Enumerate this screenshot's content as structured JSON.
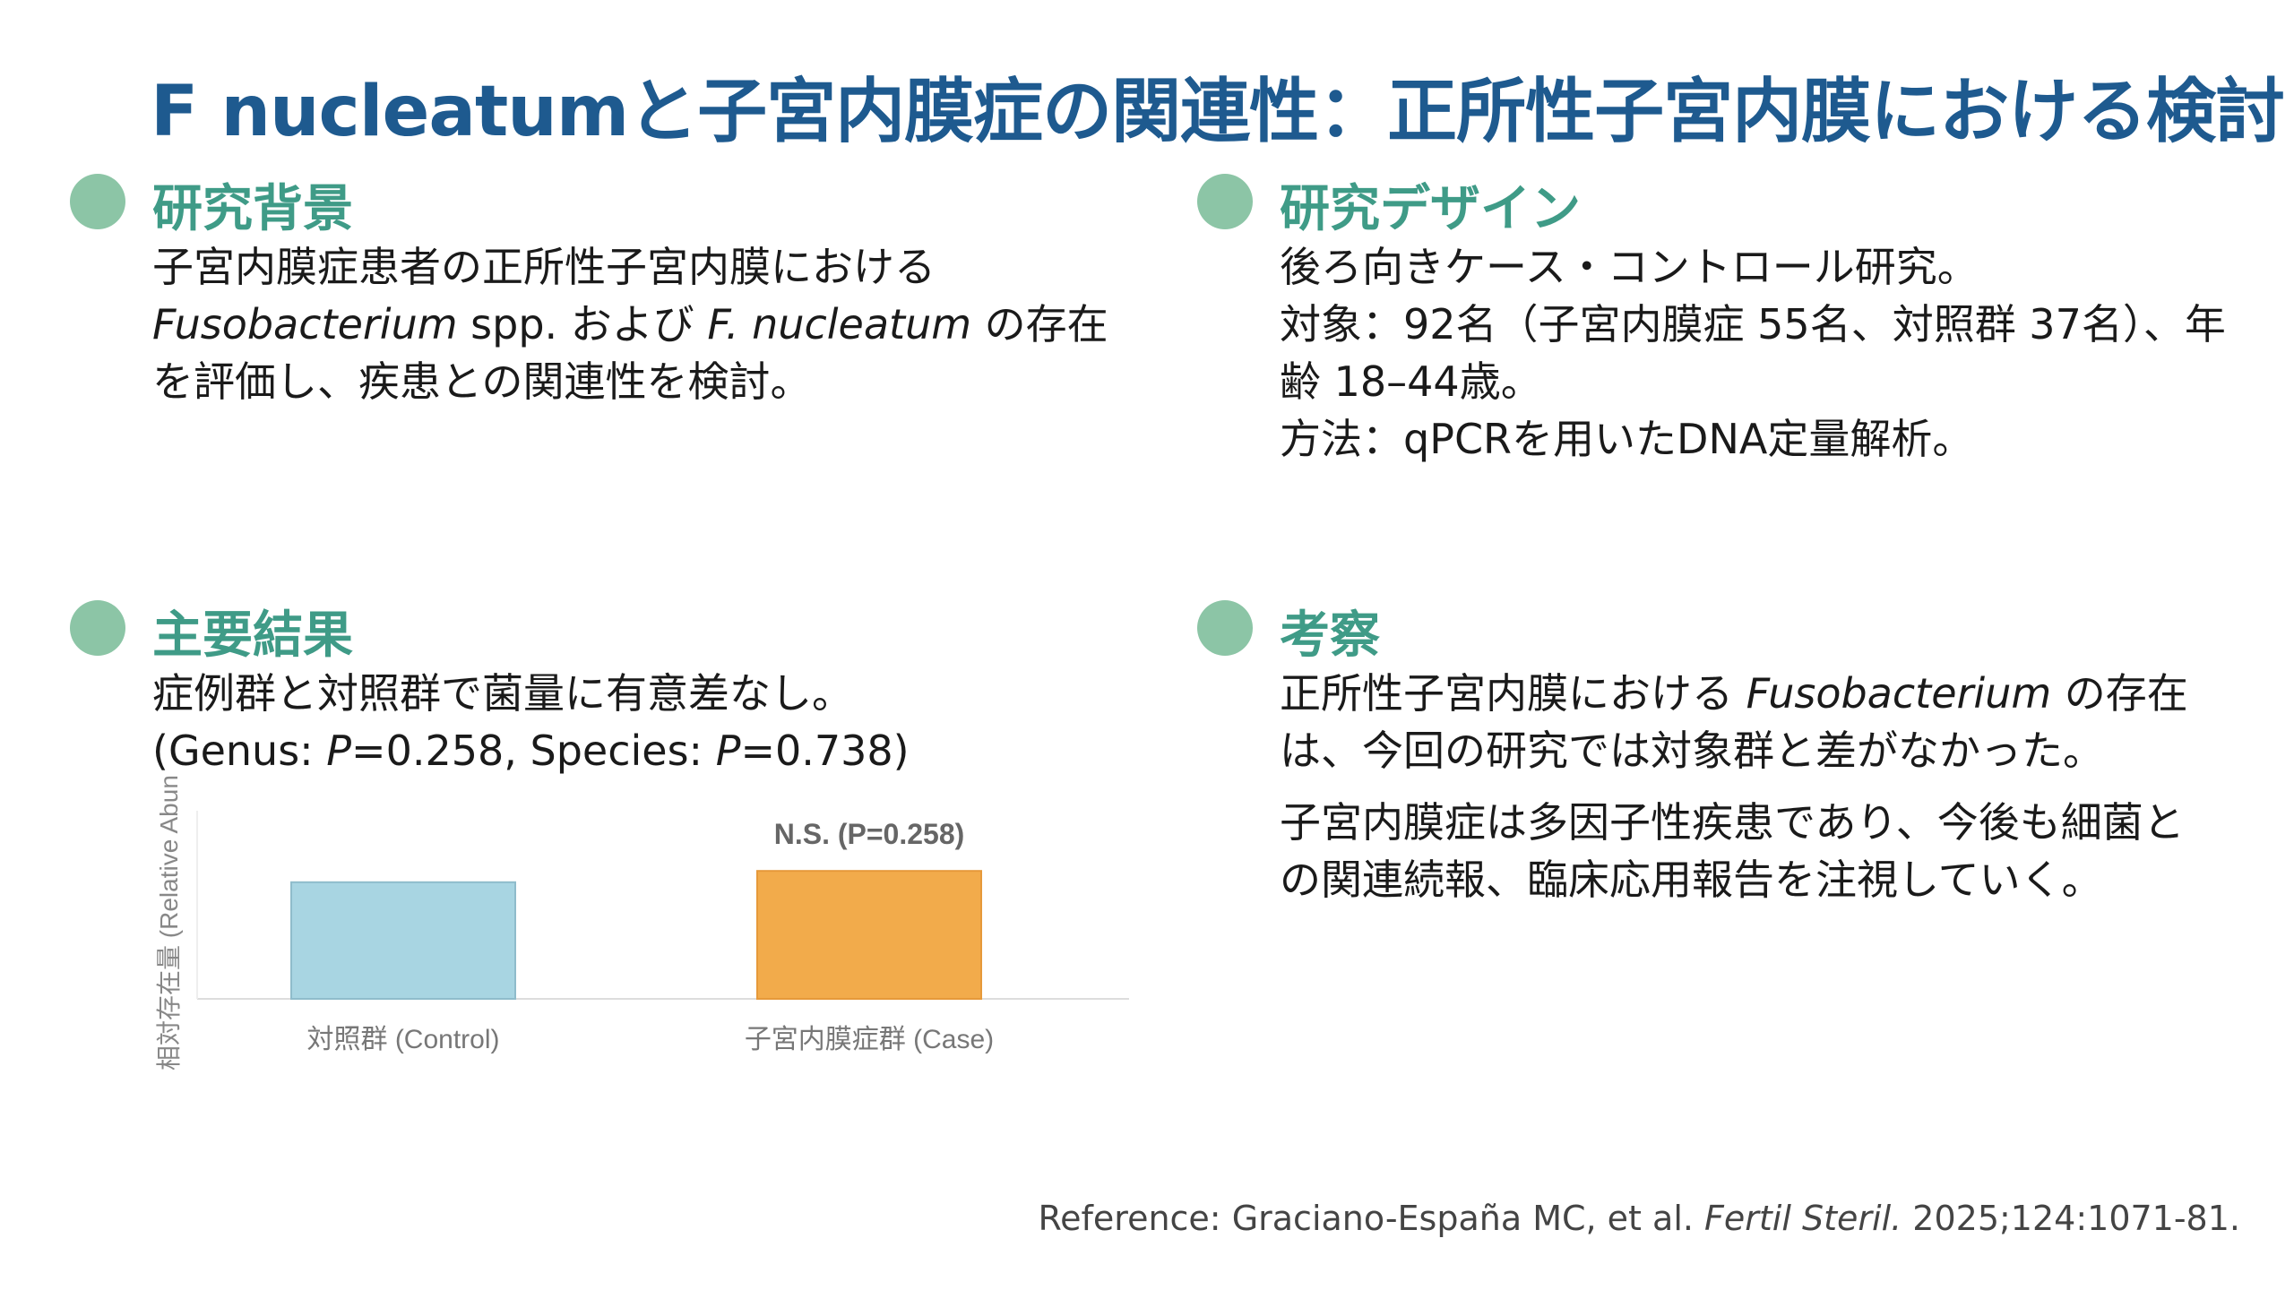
{
  "title": "F nucleatumと子宮内膜症の関連性：正所性子宮内膜における検討",
  "colors": {
    "title": "#1e5a8f",
    "heading": "#3f9b87",
    "bullet": "#8cc5a6",
    "bar_control": "#a8d5e2",
    "bar_case": "#f2ab4b"
  },
  "background": {
    "heading": "研究背景",
    "line1": "子宮内膜症患者の正所性子宮内膜における",
    "line2_i1": "Fusobacterium",
    "line2_t1": " spp. および ",
    "line2_i2": "F. nucleatum",
    "line2_t2": " の存在",
    "line3": "を評価し、疾患との関連性を検討。"
  },
  "design": {
    "heading": "研究デザイン",
    "line1": "後ろ向きケース・コントロール研究。",
    "line2": "対象：92名（子宮内膜症 55名、対照群 37名）、年",
    "line3": "齢 18–44歳。",
    "line4": "方法：qPCRを用いたDNA定量解析。"
  },
  "results": {
    "heading": "主要結果",
    "line1": "症例群と対照群で菌量に有意差なし。",
    "line2_a": "(Genus: ",
    "p1": "P",
    "line2_b": "=0.258, Species: ",
    "p2": "P",
    "line2_c": "=0.738)"
  },
  "discussion": {
    "heading": "考察",
    "line1_t": "正所性子宮内膜における ",
    "line1_i": "Fusobacterium",
    "line1_t2": " の存在",
    "line2": "は、今回の研究では対象群と差がなかった。",
    "line3": "子宮内膜症は多因子性疾患であり、今後も細菌と",
    "line4": "の関連続報、臨床応用報告を注視していく。"
  },
  "chart_data": {
    "type": "bar",
    "categories": [
      "対照群 (Control)",
      "子宮内膜症群 (Case)"
    ],
    "values": [
      0.62,
      0.68
    ],
    "ylabel": "相対存在量 (Relative Abundance)",
    "ylim": [
      0,
      1
    ],
    "annotation": "N.S. (P=0.258)",
    "grid": false
  },
  "reference": {
    "prefix": "Reference: Graciano-España MC, et al. ",
    "journal": "Fertil Steril.",
    "suffix": " 2025;124:1071-81."
  }
}
